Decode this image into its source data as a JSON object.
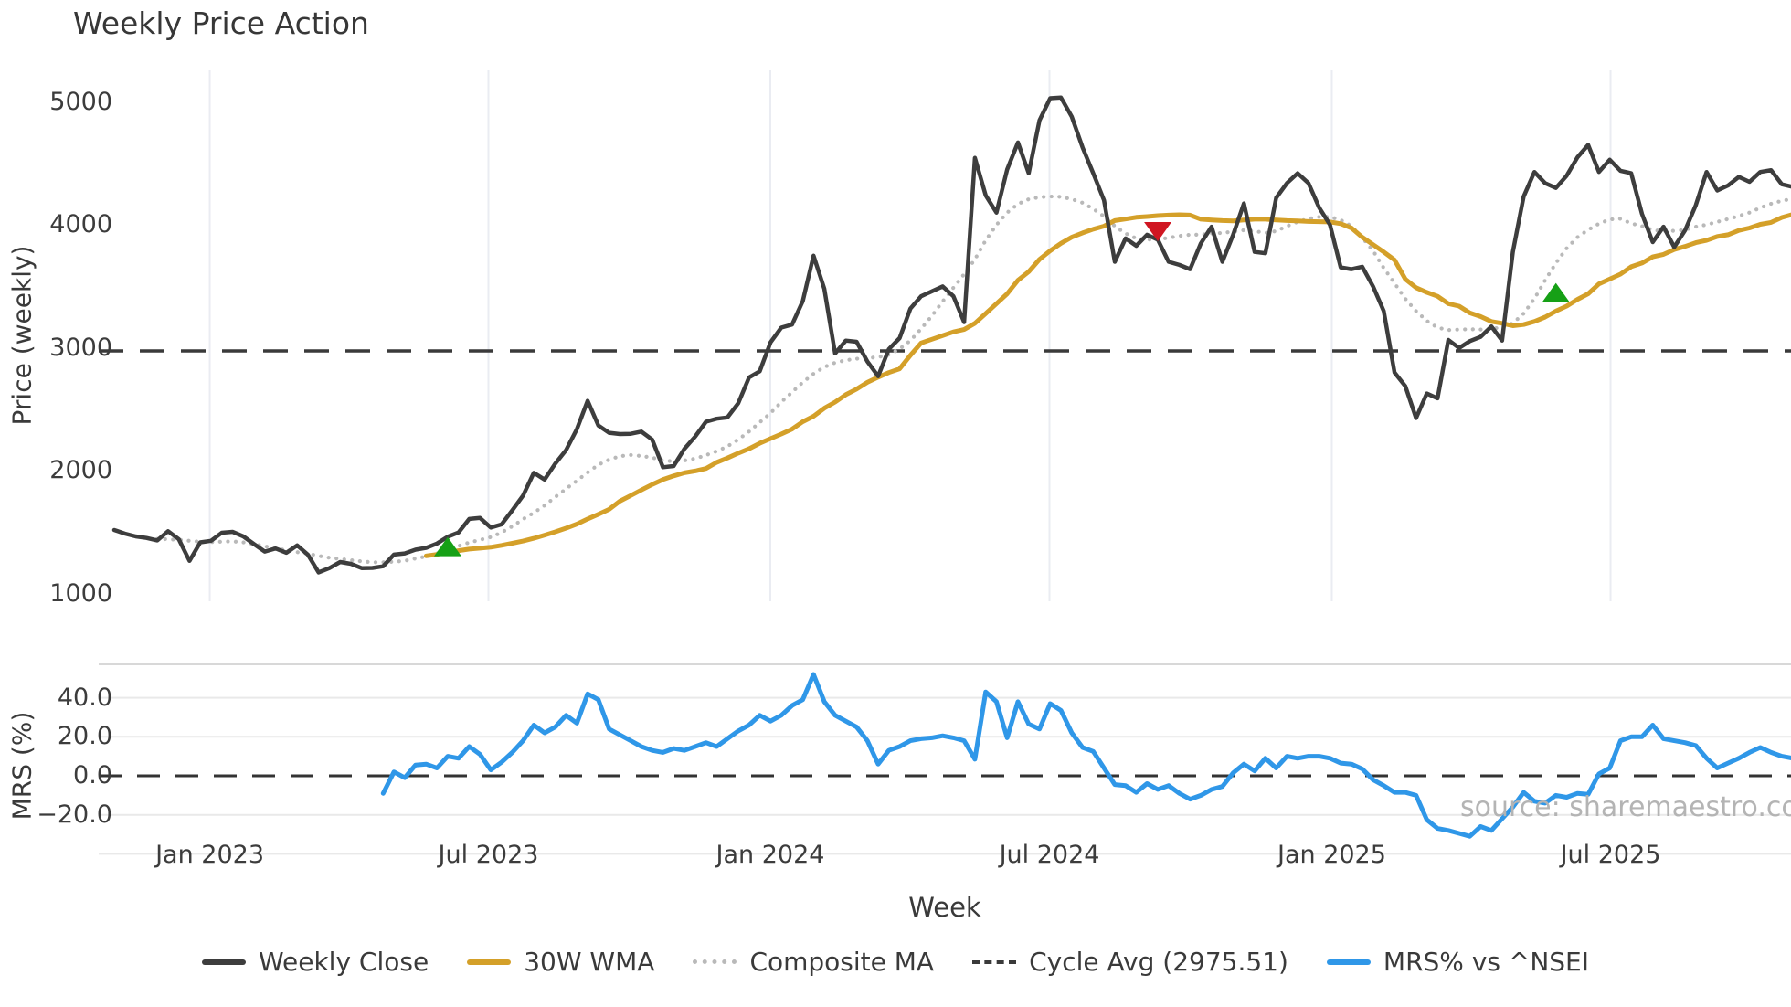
{
  "title": "Weekly Price Action",
  "watermark": "source: sharemaestro.com",
  "axes": {
    "price_label": "Price (weekly)",
    "mrs_label": "MRS (%)",
    "x_label": "Week"
  },
  "legend": {
    "position": "bottom-center",
    "items": [
      {
        "label": "Weekly Close",
        "style": "solid",
        "color": "#3d3d3d"
      },
      {
        "label": "30W WMA",
        "style": "solid",
        "color": "#d4a029"
      },
      {
        "label": "Composite MA",
        "style": "dotted",
        "color": "#b9b9b9"
      },
      {
        "label": "Cycle Avg (2975.51)",
        "style": "dashed",
        "color": "#3a3a3a"
      },
      {
        "label": "MRS% vs ^NSEI",
        "style": "solid",
        "color": "#2f97e8"
      }
    ]
  },
  "chart_data": {
    "type": "line",
    "panels": [
      {
        "name": "price",
        "ylabel": "Price (weekly)",
        "yticks": [
          1000,
          2000,
          3000,
          4000,
          5000
        ],
        "ylim": [
          940,
          5290
        ],
        "grid": "vertical-only"
      },
      {
        "name": "mrs",
        "ylabel": "MRS (%)",
        "yticks": [
          40,
          20,
          0,
          -20
        ],
        "ytick_labels": [
          "40.0",
          "20.0",
          "0.0",
          "−20.0"
        ],
        "ylim": [
          -43,
          57
        ],
        "grid": "horizontal-only"
      }
    ],
    "x_ticks": [
      {
        "label": "Jan 2023",
        "week": 8.88
      },
      {
        "label": "Jul 2023",
        "week": 34.78
      },
      {
        "label": "Jan 2024",
        "week": 60.98
      },
      {
        "label": "Jul 2024",
        "week": 86.93
      },
      {
        "label": "Jan 2025",
        "week": 113.17
      },
      {
        "label": "Jul 2025",
        "week": 139.08
      }
    ],
    "cycle_avg": 2975.51,
    "series": [
      {
        "name": "Weekly Close",
        "panel": "price",
        "color": "#3d3d3d",
        "width": 4.5,
        "dash": "solid",
        "values": [
          1520,
          1490,
          1468,
          1455,
          1435,
          1510,
          1446,
          1270,
          1420,
          1432,
          1498,
          1505,
          1468,
          1405,
          1345,
          1370,
          1335,
          1395,
          1320,
          1175,
          1210,
          1260,
          1245,
          1210,
          1212,
          1225,
          1320,
          1330,
          1360,
          1375,
          1410,
          1465,
          1500,
          1610,
          1618,
          1540,
          1565,
          1680,
          1800,
          1985,
          1930,
          2060,
          2170,
          2340,
          2570,
          2370,
          2310,
          2300,
          2302,
          2320,
          2255,
          2030,
          2040,
          2180,
          2280,
          2400,
          2425,
          2435,
          2550,
          2760,
          2810,
          3045,
          3165,
          3190,
          3380,
          3750,
          3480,
          2955,
          3060,
          3050,
          2890,
          2770,
          2990,
          3080,
          3320,
          3420,
          3460,
          3500,
          3420,
          3210,
          4545,
          4240,
          4100,
          4450,
          4670,
          4420,
          4850,
          5030,
          5035,
          4880,
          4630,
          4420,
          4200,
          3700,
          3890,
          3830,
          3920,
          3880,
          3700,
          3675,
          3640,
          3850,
          3985,
          3700,
          3920,
          4175,
          3780,
          3770,
          4220,
          4340,
          4420,
          4340,
          4140,
          4000,
          3655,
          3640,
          3660,
          3500,
          3300,
          2800,
          2690,
          2430,
          2630,
          2590,
          3065,
          3000,
          3055,
          3090,
          3175,
          3060,
          3780,
          4230,
          4430,
          4340,
          4300,
          4400,
          4550,
          4650,
          4430,
          4530,
          4440,
          4420,
          4090,
          3860,
          3985,
          3820,
          3955,
          4160,
          4430,
          4280,
          4320,
          4390,
          4350,
          4430,
          4445,
          4330,
          4310
        ]
      },
      {
        "name": "30W WMA",
        "panel": "price",
        "color": "#d4a029",
        "width": 5,
        "dash": "solid",
        "values": [
          null,
          null,
          null,
          null,
          null,
          null,
          null,
          null,
          null,
          null,
          null,
          null,
          null,
          null,
          null,
          null,
          null,
          null,
          null,
          null,
          null,
          null,
          null,
          null,
          null,
          null,
          null,
          null,
          null,
          1310,
          1322,
          1338,
          1352,
          1365,
          1372,
          1380,
          1395,
          1412,
          1430,
          1452,
          1478,
          1505,
          1535,
          1568,
          1610,
          1648,
          1688,
          1755,
          1800,
          1845,
          1890,
          1930,
          1960,
          1985,
          2000,
          2020,
          2070,
          2105,
          2145,
          2180,
          2225,
          2263,
          2300,
          2340,
          2400,
          2445,
          2510,
          2560,
          2620,
          2665,
          2720,
          2762,
          2800,
          2830,
          2940,
          3040,
          3070,
          3100,
          3130,
          3150,
          3200,
          3280,
          3360,
          3440,
          3550,
          3620,
          3720,
          3790,
          3850,
          3900,
          3935,
          3965,
          3990,
          4035,
          4048,
          4062,
          4068,
          4075,
          4080,
          4083,
          4080,
          4046,
          4040,
          4035,
          4032,
          4040,
          4046,
          4046,
          4040,
          4035,
          4032,
          4028,
          4026,
          4024,
          4010,
          3975,
          3900,
          3840,
          3780,
          3715,
          3560,
          3490,
          3452,
          3420,
          3360,
          3340,
          3285,
          3255,
          3215,
          3200,
          3180,
          3190,
          3215,
          3251,
          3300,
          3340,
          3395,
          3440,
          3520,
          3560,
          3600,
          3660,
          3690,
          3740,
          3760,
          3800,
          3825,
          3855,
          3875,
          3905,
          3920,
          3955,
          3975,
          4005,
          4020,
          4060,
          4085
        ]
      },
      {
        "name": "Composite MA",
        "panel": "price",
        "color": "#b9b9b9",
        "width": 4.2,
        "dash": "dotted",
        "values": [
          null,
          null,
          null,
          null,
          1448,
          1445,
          1440,
          1432,
          1425,
          1422,
          1425,
          1428,
          1420,
          1405,
          1388,
          1372,
          1355,
          1340,
          1328,
          1310,
          1295,
          1285,
          1275,
          1265,
          1258,
          1258,
          1262,
          1270,
          1288,
          1305,
          1330,
          1360,
          1390,
          1418,
          1440,
          1462,
          1500,
          1550,
          1608,
          1660,
          1720,
          1788,
          1855,
          1920,
          1988,
          2050,
          2092,
          2120,
          2130,
          2122,
          2108,
          2085,
          2078,
          2085,
          2100,
          2128,
          2160,
          2200,
          2255,
          2320,
          2395,
          2470,
          2560,
          2640,
          2720,
          2790,
          2845,
          2880,
          2900,
          2912,
          2918,
          2925,
          2945,
          2992,
          3060,
          3155,
          3260,
          3378,
          3490,
          3600,
          3720,
          3875,
          4000,
          4100,
          4170,
          4209,
          4225,
          4231,
          4228,
          4210,
          4180,
          4130,
          4069,
          3990,
          3930,
          3890,
          3880,
          3883,
          3895,
          3910,
          3920,
          3920,
          3930,
          3935,
          3945,
          3957,
          3950,
          3935,
          3950,
          3990,
          4025,
          4050,
          4065,
          4065,
          4040,
          3990,
          3897,
          3790,
          3650,
          3526,
          3400,
          3300,
          3220,
          3165,
          3145,
          3150,
          3152,
          3150,
          3155,
          3168,
          3200,
          3280,
          3400,
          3550,
          3690,
          3810,
          3900,
          3960,
          4010,
          4045,
          4050,
          4012,
          3990,
          3958,
          3950,
          3952,
          3960,
          3985,
          4002,
          4025,
          4048,
          4072,
          4100,
          4140,
          4172,
          4196,
          4212
        ]
      },
      {
        "name": "MRS% vs ^NSEI",
        "panel": "mrs",
        "color": "#2f97e8",
        "width": 5,
        "dash": "solid",
        "values": [
          null,
          null,
          null,
          null,
          null,
          null,
          null,
          null,
          null,
          null,
          null,
          null,
          null,
          null,
          null,
          null,
          null,
          null,
          null,
          null,
          null,
          null,
          null,
          null,
          null,
          -9,
          2,
          -1,
          5.5,
          6,
          4,
          10,
          9,
          15,
          11,
          3,
          7,
          12,
          18,
          26,
          22,
          25,
          31,
          27,
          42,
          39,
          24,
          21,
          18,
          15,
          13,
          12,
          14,
          13,
          15,
          17,
          15,
          19,
          23,
          26,
          31,
          28,
          31,
          36,
          39,
          52,
          38,
          31,
          28,
          25,
          18,
          6,
          13,
          15,
          18,
          19,
          19.5,
          20.5,
          19.5,
          18,
          8.5,
          43,
          38,
          19.5,
          38,
          26.5,
          24,
          37,
          33.5,
          22,
          14.5,
          12.5,
          4,
          -4.5,
          -5,
          -8.5,
          -4,
          -7,
          -5,
          -9,
          -12,
          -10,
          -7,
          -5.5,
          1.5,
          6,
          2.5,
          9,
          4,
          10,
          9,
          10,
          10,
          9,
          6.5,
          6,
          3.5,
          -2,
          -5,
          -8.5,
          -8.5,
          -10,
          -22.5,
          -27,
          -28,
          -29.5,
          -31,
          -26,
          -28,
          -22,
          -16,
          -8.5,
          -13,
          -14,
          -10,
          -11,
          -9,
          -9.5,
          1,
          4,
          18,
          20,
          20,
          26,
          19,
          18,
          17,
          15.5,
          9,
          4,
          6.5,
          9,
          12,
          14.5,
          12,
          10,
          9
        ]
      }
    ],
    "markers": [
      {
        "type": "buy-signal",
        "shape": "triangle-up",
        "color": "#16a016",
        "week": 31,
        "price": 1385
      },
      {
        "type": "sell-signal",
        "shape": "triangle-down",
        "color": "#d01622",
        "week": 97,
        "price": 3945
      },
      {
        "type": "buy-signal",
        "shape": "triangle-up",
        "color": "#16a016",
        "week": 134,
        "price": 3450
      }
    ]
  }
}
